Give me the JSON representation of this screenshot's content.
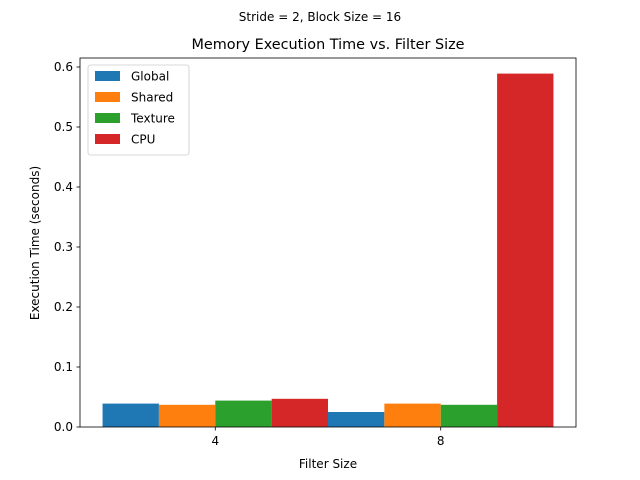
{
  "chart_data": {
    "type": "bar",
    "suptitle": "Stride = 2, Block Size = 16",
    "title": "Memory Execution Time vs. Filter Size",
    "xlabel": "Filter Size",
    "ylabel": "Execution Time (seconds)",
    "categories": [
      "4",
      "8"
    ],
    "ylim": [
      0,
      0.6
    ],
    "yticks": [
      "0.0",
      "0.1",
      "0.2",
      "0.3",
      "0.4",
      "0.5",
      "0.6"
    ],
    "grid": false,
    "legend_position": "top-left",
    "series": [
      {
        "name": "Global",
        "color": "#1f77b4",
        "values": [
          0.039,
          0.025
        ]
      },
      {
        "name": "Shared",
        "color": "#ff7f0e",
        "values": [
          0.037,
          0.039
        ]
      },
      {
        "name": "Texture",
        "color": "#2ca02c",
        "values": [
          0.044,
          0.037
        ]
      },
      {
        "name": "CPU",
        "color": "#d62728",
        "values": [
          0.047,
          0.589
        ]
      }
    ]
  }
}
